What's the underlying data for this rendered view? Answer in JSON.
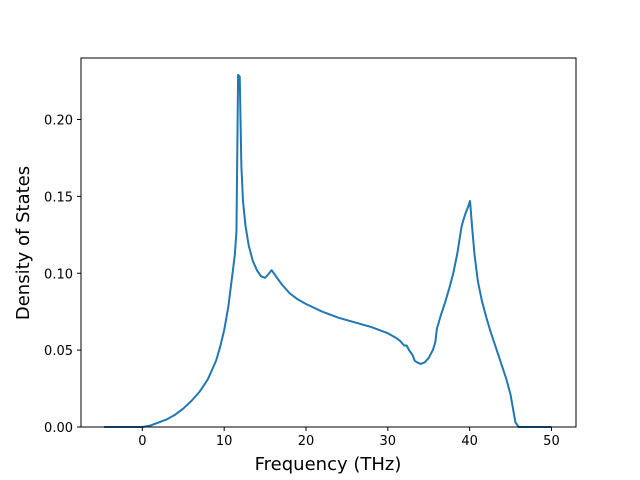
{
  "chart_data": {
    "type": "line",
    "title": "",
    "xlabel": "Frequency (THz)",
    "ylabel": "Density of States",
    "xlim": [
      -7.5,
      53
    ],
    "ylim": [
      0,
      0.24
    ],
    "grid": false,
    "xticks": [
      0,
      10,
      20,
      30,
      40,
      50
    ],
    "xtick_labels": [
      "0",
      "10",
      "20",
      "30",
      "40",
      "50"
    ],
    "yticks": [
      0.0,
      0.05,
      0.1,
      0.15,
      0.2
    ],
    "ytick_labels": [
      "0.00",
      "0.05",
      "0.10",
      "0.15",
      "0.20"
    ],
    "series": [
      {
        "color": "#1f77b4",
        "x": [
          -4.7,
          0,
          1,
          2,
          3,
          4,
          5,
          6,
          7,
          8,
          9,
          9.5,
          10,
          10.5,
          11,
          11.3,
          11.5,
          11.7,
          11.9,
          12.1,
          12.3,
          12.6,
          13,
          13.5,
          14,
          14.5,
          15,
          15.5,
          15.8,
          16.2,
          17,
          18,
          19,
          20,
          22,
          24,
          26,
          28,
          30,
          31,
          31.5,
          32,
          32.3,
          32.6,
          33,
          33.3,
          33.6,
          34,
          34.5,
          35,
          35.5,
          35.8,
          36,
          36.5,
          37,
          37.5,
          38,
          38.5,
          39,
          39.2,
          39.5,
          39.8,
          40.05,
          40.3,
          40.6,
          41,
          41.5,
          42,
          42.5,
          43,
          43.5,
          44,
          44.5,
          45,
          45.3,
          45.6,
          46,
          47,
          48,
          49,
          50
        ],
        "y": [
          0,
          0,
          0.001,
          0.003,
          0.005,
          0.008,
          0.012,
          0.017,
          0.023,
          0.031,
          0.043,
          0.052,
          0.063,
          0.078,
          0.099,
          0.112,
          0.127,
          0.229,
          0.228,
          0.17,
          0.147,
          0.131,
          0.118,
          0.108,
          0.102,
          0.098,
          0.097,
          0.1,
          0.102,
          0.099,
          0.093,
          0.087,
          0.083,
          0.08,
          0.075,
          0.071,
          0.068,
          0.065,
          0.061,
          0.058,
          0.056,
          0.053,
          0.053,
          0.05,
          0.047,
          0.043,
          0.042,
          0.041,
          0.042,
          0.045,
          0.05,
          0.055,
          0.064,
          0.073,
          0.081,
          0.09,
          0.1,
          0.113,
          0.13,
          0.134,
          0.139,
          0.143,
          0.147,
          0.13,
          0.112,
          0.095,
          0.082,
          0.072,
          0.063,
          0.055,
          0.047,
          0.039,
          0.031,
          0.021,
          0.012,
          0.003,
          0,
          0,
          0,
          0,
          0
        ]
      }
    ]
  }
}
